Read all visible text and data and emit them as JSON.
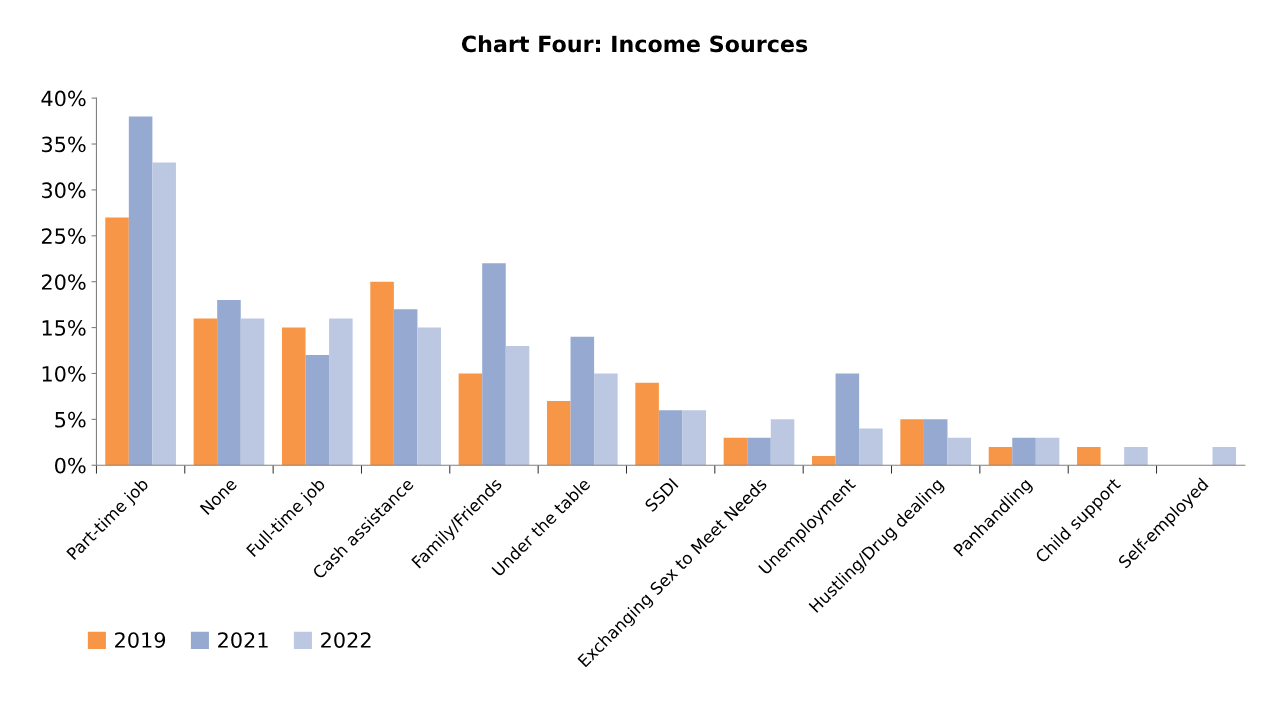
{
  "chart_data": {
    "type": "bar",
    "title": "Chart Four: Income Sources",
    "categories": [
      "Part-time job",
      "None",
      "Full-time job",
      "Cash assistance",
      "Family/Friends",
      "Under the table",
      "SSDI",
      "Exchanging Sex to Meet Needs",
      "Unemployment",
      "Hustling/Drug dealing",
      "Panhandling",
      "Child support",
      "Self-employed"
    ],
    "series": [
      {
        "name": "2019",
        "color": "#f79646",
        "values": [
          27,
          16,
          15,
          20,
          10,
          7,
          9,
          3,
          1,
          5,
          2,
          2,
          0
        ]
      },
      {
        "name": "2021",
        "color": "#95a9d1",
        "values": [
          38,
          18,
          12,
          17,
          22,
          14,
          6,
          3,
          10,
          5,
          3,
          0,
          0
        ]
      },
      {
        "name": "2022",
        "color": "#bcc8e2",
        "values": [
          33,
          16,
          16,
          15,
          13,
          10,
          6,
          5,
          4,
          3,
          3,
          2,
          2
        ]
      }
    ],
    "ylim": [
      0,
      40
    ],
    "yticks": [
      {
        "value": 0,
        "label": "0%"
      },
      {
        "value": 5,
        "label": "5%"
      },
      {
        "value": 10,
        "label": "10%"
      },
      {
        "value": 15,
        "label": "15%"
      },
      {
        "value": 20,
        "label": "20%"
      },
      {
        "value": 25,
        "label": "25%"
      },
      {
        "value": 30,
        "label": "30%"
      },
      {
        "value": 35,
        "label": "35%"
      },
      {
        "value": 40,
        "label": "40%"
      }
    ],
    "grid": false,
    "legend": "bottom left"
  }
}
